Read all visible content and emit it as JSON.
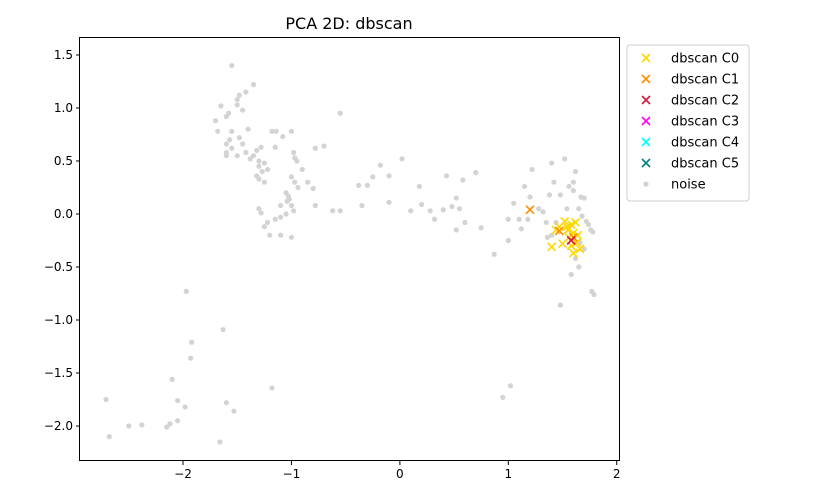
{
  "chart_data": {
    "type": "scatter",
    "title": "PCA 2D: dbscan",
    "xlabel": "",
    "ylabel": "",
    "xlim": [
      -2.95,
      2.03
    ],
    "ylim": [
      -2.33,
      1.66
    ],
    "x_ticks": [
      -2,
      -1,
      0,
      1,
      2
    ],
    "x_tick_labels": [
      "−2",
      "−1",
      "0",
      "1",
      "2"
    ],
    "y_ticks": [
      1.5,
      1.0,
      0.5,
      0.0,
      -0.5,
      -1.0,
      -1.5,
      -2.0
    ],
    "y_tick_labels": [
      "1.5",
      "1.0",
      "0.5",
      "0.0",
      "−0.5",
      "−1.0",
      "−1.5",
      "−2.0"
    ],
    "grid": false,
    "legend_position": "outside-upper-right",
    "series": [
      {
        "name": "dbscan C0",
        "marker": "x",
        "color": "#ffd700",
        "points": [
          [
            1.47,
            -0.12
          ],
          [
            1.52,
            -0.07
          ],
          [
            1.55,
            -0.15
          ],
          [
            1.58,
            -0.1
          ],
          [
            1.62,
            -0.08
          ],
          [
            1.6,
            -0.18
          ],
          [
            1.64,
            -0.2
          ],
          [
            1.56,
            -0.22
          ],
          [
            1.5,
            -0.28
          ],
          [
            1.58,
            -0.3
          ],
          [
            1.66,
            -0.33
          ],
          [
            1.4,
            -0.31
          ],
          [
            1.6,
            -0.37
          ],
          [
            1.44,
            -0.15
          ],
          [
            1.63,
            -0.27
          ],
          [
            1.54,
            -0.12
          ]
        ]
      },
      {
        "name": "dbscan C1",
        "marker": "x",
        "color": "#ff8c00",
        "points": [
          [
            1.2,
            0.04
          ],
          [
            1.47,
            -0.16
          ],
          [
            1.6,
            -0.22
          ]
        ]
      },
      {
        "name": "dbscan C2",
        "marker": "x",
        "color": "#dc143c",
        "points": [
          [
            1.58,
            -0.25
          ]
        ]
      },
      {
        "name": "dbscan C3",
        "marker": "x",
        "color": "#ff00ff",
        "points": []
      },
      {
        "name": "dbscan C4",
        "marker": "x",
        "color": "#00ffff",
        "points": []
      },
      {
        "name": "dbscan C5",
        "marker": "x",
        "color": "#008080",
        "points": []
      },
      {
        "name": "noise",
        "marker": "dot",
        "color": "#d3d3d3",
        "points": [
          [
            -1.55,
            1.4
          ],
          [
            -1.35,
            1.22
          ],
          [
            -1.48,
            1.12
          ],
          [
            -1.42,
            1.15
          ],
          [
            -1.5,
            1.08
          ],
          [
            -1.5,
            1.03
          ],
          [
            -1.45,
            0.98
          ],
          [
            -1.65,
            1.02
          ],
          [
            -1.58,
            0.95
          ],
          [
            -1.6,
            0.92
          ],
          [
            -1.7,
            0.88
          ],
          [
            -1.68,
            0.78
          ],
          [
            -1.55,
            0.78
          ],
          [
            -1.4,
            0.8
          ],
          [
            -1.48,
            0.72
          ],
          [
            -1.57,
            0.7
          ],
          [
            -1.45,
            0.66
          ],
          [
            -1.6,
            0.66
          ],
          [
            -1.5,
            0.55
          ],
          [
            -1.42,
            0.58
          ],
          [
            -1.55,
            0.62
          ],
          [
            -1.6,
            0.58
          ],
          [
            -1.6,
            0.55
          ],
          [
            -1.35,
            0.55
          ],
          [
            -1.3,
            0.5
          ],
          [
            -1.25,
            0.48
          ],
          [
            -1.3,
            0.45
          ],
          [
            -1.38,
            0.52
          ],
          [
            -1.27,
            0.4
          ],
          [
            -1.22,
            0.42
          ],
          [
            -1.32,
            0.36
          ],
          [
            -1.3,
            0.33
          ],
          [
            -1.25,
            0.3
          ],
          [
            -1.32,
            0.6
          ],
          [
            -1.28,
            0.63
          ],
          [
            -1.15,
            0.63
          ],
          [
            -1.18,
            0.78
          ],
          [
            -1.14,
            0.78
          ],
          [
            -1.08,
            0.73
          ],
          [
            -1.0,
            0.78
          ],
          [
            -0.98,
            0.58
          ],
          [
            -0.97,
            0.53
          ],
          [
            -0.95,
            0.5
          ],
          [
            -0.9,
            0.42
          ],
          [
            -0.85,
            0.3
          ],
          [
            -0.8,
            0.24
          ],
          [
            -0.78,
            0.62
          ],
          [
            -0.7,
            0.64
          ],
          [
            -1.0,
            0.35
          ],
          [
            -0.97,
            0.3
          ],
          [
            -0.94,
            0.25
          ],
          [
            -1.05,
            0.2
          ],
          [
            -1.03,
            0.17
          ],
          [
            -1.02,
            0.14
          ],
          [
            -1.04,
            0.12
          ],
          [
            -1.1,
            0.08
          ],
          [
            -1.0,
            0.08
          ],
          [
            -0.98,
            0.03
          ],
          [
            -1.05,
            0.0
          ],
          [
            -1.1,
            -0.03
          ],
          [
            -1.15,
            -0.05
          ],
          [
            -1.22,
            -0.08
          ],
          [
            -1.3,
            0.05
          ],
          [
            -1.28,
            0.01
          ],
          [
            -1.25,
            -0.12
          ],
          [
            -1.2,
            -0.2
          ],
          [
            -1.1,
            -0.2
          ],
          [
            -1.0,
            -0.22
          ],
          [
            -0.78,
            0.08
          ],
          [
            -0.62,
            0.03
          ],
          [
            -0.55,
            0.03
          ],
          [
            -0.55,
            0.95
          ],
          [
            -0.38,
            0.27
          ],
          [
            -0.3,
            0.27
          ],
          [
            -0.25,
            0.35
          ],
          [
            -0.18,
            0.46
          ],
          [
            -0.1,
            0.36
          ],
          [
            -0.1,
            0.11
          ],
          [
            -0.35,
            0.08
          ],
          [
            0.02,
            0.52
          ],
          [
            0.1,
            0.03
          ],
          [
            0.18,
            0.26
          ],
          [
            0.2,
            0.09
          ],
          [
            0.28,
            0.03
          ],
          [
            0.32,
            -0.05
          ],
          [
            0.4,
            0.04
          ],
          [
            0.43,
            0.36
          ],
          [
            0.48,
            0.07
          ],
          [
            0.52,
            0.15
          ],
          [
            0.52,
            -0.15
          ],
          [
            0.55,
            0.05
          ],
          [
            0.58,
            0.32
          ],
          [
            0.6,
            -0.08
          ],
          [
            0.7,
            0.39
          ],
          [
            0.75,
            -0.13
          ],
          [
            0.87,
            -0.38
          ],
          [
            1.0,
            -0.25
          ],
          [
            1.0,
            -0.05
          ],
          [
            1.05,
            0.1
          ],
          [
            1.1,
            -0.05
          ],
          [
            1.12,
            -0.14
          ],
          [
            1.15,
            0.26
          ],
          [
            1.2,
            0.16
          ],
          [
            1.18,
            -0.05
          ],
          [
            1.22,
            0.42
          ],
          [
            1.28,
            0.05
          ],
          [
            1.32,
            0.02
          ],
          [
            1.35,
            -0.08
          ],
          [
            1.38,
            0.18
          ],
          [
            1.4,
            0.48
          ],
          [
            1.42,
            0.3
          ],
          [
            1.4,
            -0.2
          ],
          [
            1.44,
            -0.08
          ],
          [
            1.48,
            0.18
          ],
          [
            1.52,
            0.52
          ],
          [
            1.54,
            0.05
          ],
          [
            1.56,
            0.26
          ],
          [
            1.6,
            0.3
          ],
          [
            1.6,
            0.22
          ],
          [
            1.62,
            0.4
          ],
          [
            1.65,
            0.05
          ],
          [
            1.67,
            0.16
          ],
          [
            1.7,
            0.15
          ],
          [
            1.68,
            -0.02
          ],
          [
            1.72,
            -0.07
          ],
          [
            1.74,
            -0.1
          ],
          [
            1.76,
            -0.15
          ],
          [
            1.78,
            -0.17
          ],
          [
            1.7,
            -0.33
          ],
          [
            1.65,
            -0.5
          ],
          [
            1.58,
            -0.57
          ],
          [
            1.48,
            -0.86
          ],
          [
            1.77,
            -0.73
          ],
          [
            1.79,
            -0.76
          ],
          [
            1.36,
            -0.22
          ],
          [
            1.66,
            -0.27
          ],
          [
            1.62,
            -0.42
          ],
          [
            0.95,
            -1.73
          ],
          [
            1.02,
            -1.62
          ],
          [
            -1.97,
            -0.73
          ],
          [
            -1.92,
            -1.21
          ],
          [
            -1.93,
            -1.36
          ],
          [
            -1.63,
            -1.09
          ],
          [
            -2.1,
            -1.56
          ],
          [
            -2.05,
            -1.76
          ],
          [
            -1.98,
            -1.82
          ],
          [
            -2.05,
            -1.95
          ],
          [
            -2.12,
            -1.98
          ],
          [
            -2.15,
            -2.01
          ],
          [
            -2.38,
            -1.99
          ],
          [
            -2.5,
            -2.0
          ],
          [
            -2.71,
            -1.75
          ],
          [
            -2.68,
            -2.1
          ],
          [
            -1.66,
            -2.15
          ],
          [
            -1.6,
            -1.78
          ],
          [
            -1.53,
            -1.86
          ],
          [
            -1.18,
            -1.64
          ]
        ]
      }
    ]
  }
}
